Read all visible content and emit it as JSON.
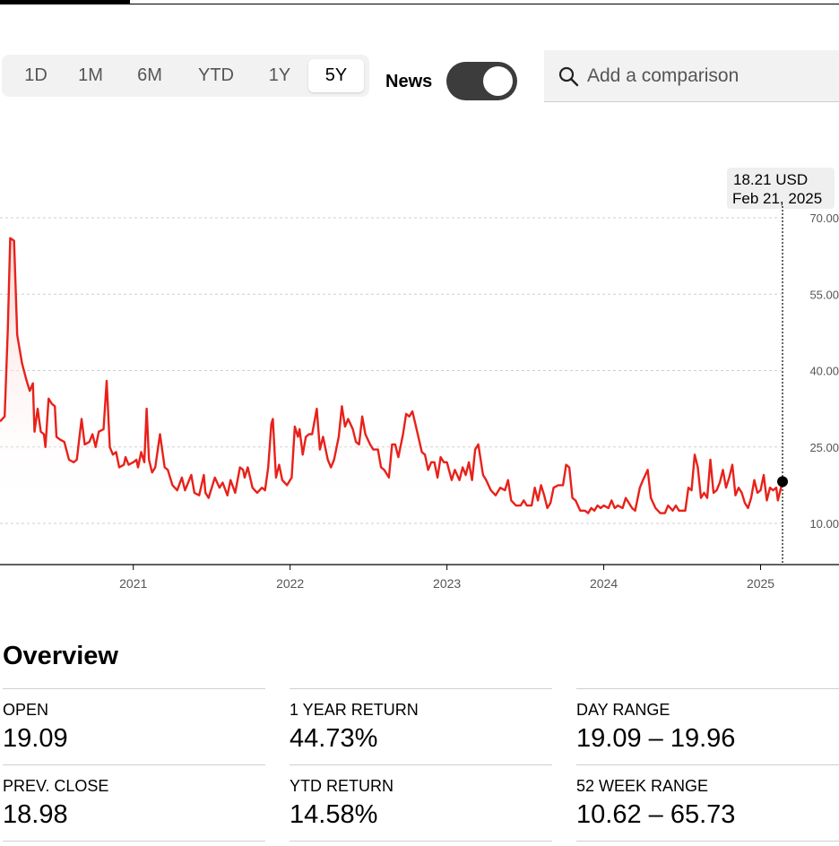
{
  "ranges": [
    {
      "label": "1D",
      "active": false
    },
    {
      "label": "1M",
      "active": false
    },
    {
      "label": "6M",
      "active": false
    },
    {
      "label": "YTD",
      "active": false
    },
    {
      "label": "1Y",
      "active": false
    },
    {
      "label": "5Y",
      "active": true
    }
  ],
  "news": {
    "label": "News",
    "on": true
  },
  "search": {
    "placeholder": "Add a comparison",
    "icon": "search-icon"
  },
  "tooltip": {
    "value": "18.21 USD",
    "date": "Feb 21, 2025"
  },
  "colors": {
    "line": "#e8211a",
    "fill_top": "#fbd2ce",
    "toggle": "#3c3c3c"
  },
  "chart_data": {
    "type": "area",
    "y_ticks": [
      "70.00",
      "55.00",
      "40.00",
      "25.00",
      "10.00"
    ],
    "ylim": [
      0,
      70
    ],
    "x_ticks": [
      "2021",
      "2022",
      "2023",
      "2024",
      "2025"
    ],
    "xlim": [
      2020.15,
      2025.5
    ],
    "grid": true,
    "marker": {
      "x": 2025.14,
      "y": 18.21
    },
    "series": [
      {
        "values": [
          [
            2020.15,
            30.0
          ],
          [
            2020.18,
            31.0
          ],
          [
            2020.2,
            48.0
          ],
          [
            2020.215,
            66.0
          ],
          [
            2020.24,
            65.5
          ],
          [
            2020.26,
            47.0
          ],
          [
            2020.29,
            41.5
          ],
          [
            2020.32,
            38.0
          ],
          [
            2020.34,
            36.0
          ],
          [
            2020.36,
            37.5
          ],
          [
            2020.37,
            28.0
          ],
          [
            2020.39,
            32.5
          ],
          [
            2020.41,
            28.0
          ],
          [
            2020.43,
            27.5
          ],
          [
            2020.44,
            25.0
          ],
          [
            2020.46,
            34.5
          ],
          [
            2020.48,
            33.5
          ],
          [
            2020.5,
            33.0
          ],
          [
            2020.51,
            27.0
          ],
          [
            2020.53,
            26.5
          ],
          [
            2020.56,
            26.0
          ],
          [
            2020.59,
            22.5
          ],
          [
            2020.62,
            22.0
          ],
          [
            2020.64,
            22.5
          ],
          [
            2020.67,
            30.5
          ],
          [
            2020.69,
            25.5
          ],
          [
            2020.72,
            26.0
          ],
          [
            2020.74,
            27.5
          ],
          [
            2020.76,
            25.0
          ],
          [
            2020.78,
            28.0
          ],
          [
            2020.81,
            28.5
          ],
          [
            2020.83,
            38.0
          ],
          [
            2020.85,
            25.0
          ],
          [
            2020.87,
            23.5
          ],
          [
            2020.89,
            24.0
          ],
          [
            2020.91,
            21.0
          ],
          [
            2020.94,
            21.5
          ],
          [
            2020.95,
            23.0
          ],
          [
            2020.97,
            21.5
          ],
          [
            2021.0,
            22.0
          ],
          [
            2021.02,
            22.5
          ],
          [
            2021.03,
            21.0
          ],
          [
            2021.05,
            24.0
          ],
          [
            2021.07,
            22.0
          ],
          [
            2021.085,
            32.5
          ],
          [
            2021.1,
            22.5
          ],
          [
            2021.12,
            20.0
          ],
          [
            2021.14,
            21.0
          ],
          [
            2021.17,
            27.5
          ],
          [
            2021.2,
            21.0
          ],
          [
            2021.22,
            20.5
          ],
          [
            2021.25,
            17.5
          ],
          [
            2021.28,
            16.5
          ],
          [
            2021.31,
            19.0
          ],
          [
            2021.33,
            16.5
          ],
          [
            2021.37,
            19.5
          ],
          [
            2021.39,
            16.0
          ],
          [
            2021.42,
            15.5
          ],
          [
            2021.45,
            19.5
          ],
          [
            2021.46,
            16.0
          ],
          [
            2021.48,
            15.0
          ],
          [
            2021.52,
            19.0
          ],
          [
            2021.55,
            17.0
          ],
          [
            2021.57,
            18.0
          ],
          [
            2021.6,
            15.5
          ],
          [
            2021.62,
            18.5
          ],
          [
            2021.65,
            16.0
          ],
          [
            2021.68,
            21.0
          ],
          [
            2021.7,
            20.5
          ],
          [
            2021.71,
            19.0
          ],
          [
            2021.73,
            21.0
          ],
          [
            2021.76,
            17.0
          ],
          [
            2021.79,
            16.0
          ],
          [
            2021.82,
            17.0
          ],
          [
            2021.84,
            16.5
          ],
          [
            2021.86,
            21.0
          ],
          [
            2021.88,
            29.5
          ],
          [
            2021.89,
            30.5
          ],
          [
            2021.91,
            19.0
          ],
          [
            2021.93,
            21.5
          ],
          [
            2021.95,
            18.5
          ],
          [
            2021.98,
            17.5
          ],
          [
            2022.01,
            19.0
          ],
          [
            2022.03,
            29.0
          ],
          [
            2022.05,
            27.0
          ],
          [
            2022.06,
            28.5
          ],
          [
            2022.08,
            23.5
          ],
          [
            2022.1,
            27.0
          ],
          [
            2022.12,
            27.5
          ],
          [
            2022.14,
            27.5
          ],
          [
            2022.17,
            32.5
          ],
          [
            2022.19,
            24.5
          ],
          [
            2022.21,
            27.0
          ],
          [
            2022.24,
            22.5
          ],
          [
            2022.26,
            21.0
          ],
          [
            2022.28,
            22.5
          ],
          [
            2022.31,
            27.0
          ],
          [
            2022.33,
            33.0
          ],
          [
            2022.35,
            29.0
          ],
          [
            2022.37,
            30.5
          ],
          [
            2022.4,
            28.5
          ],
          [
            2022.42,
            26.0
          ],
          [
            2022.44,
            25.5
          ],
          [
            2022.46,
            31.0
          ],
          [
            2022.48,
            27.5
          ],
          [
            2022.51,
            25.5
          ],
          [
            2022.53,
            24.5
          ],
          [
            2022.56,
            24.5
          ],
          [
            2022.58,
            21.0
          ],
          [
            2022.6,
            20.5
          ],
          [
            2022.63,
            19.0
          ],
          [
            2022.65,
            25.5
          ],
          [
            2022.67,
            25.5
          ],
          [
            2022.69,
            23.0
          ],
          [
            2022.72,
            27.5
          ],
          [
            2022.74,
            31.5
          ],
          [
            2022.76,
            31.0
          ],
          [
            2022.78,
            32.0
          ],
          [
            2022.81,
            28.0
          ],
          [
            2022.84,
            24.0
          ],
          [
            2022.86,
            23.5
          ],
          [
            2022.88,
            20.5
          ],
          [
            2022.9,
            22.0
          ],
          [
            2022.92,
            22.0
          ],
          [
            2022.94,
            19.0
          ],
          [
            2022.96,
            23.0
          ],
          [
            2022.98,
            22.0
          ],
          [
            2023.0,
            22.0
          ],
          [
            2023.03,
            18.5
          ],
          [
            2023.05,
            20.5
          ],
          [
            2023.08,
            18.5
          ],
          [
            2023.1,
            21.0
          ],
          [
            2023.12,
            19.5
          ],
          [
            2023.14,
            22.0
          ],
          [
            2023.16,
            18.5
          ],
          [
            2023.18,
            24.5
          ],
          [
            2023.2,
            25.5
          ],
          [
            2023.23,
            19.5
          ],
          [
            2023.25,
            18.5
          ],
          [
            2023.28,
            16.5
          ],
          [
            2023.31,
            15.5
          ],
          [
            2023.34,
            17.0
          ],
          [
            2023.37,
            16.5
          ],
          [
            2023.39,
            18.5
          ],
          [
            2023.41,
            14.5
          ],
          [
            2023.44,
            13.5
          ],
          [
            2023.47,
            13.5
          ],
          [
            2023.49,
            14.5
          ],
          [
            2023.51,
            13.5
          ],
          [
            2023.54,
            13.5
          ],
          [
            2023.56,
            17.0
          ],
          [
            2023.58,
            14.5
          ],
          [
            2023.6,
            17.5
          ],
          [
            2023.62,
            15.5
          ],
          [
            2023.64,
            13.0
          ],
          [
            2023.66,
            14.0
          ],
          [
            2023.68,
            17.0
          ],
          [
            2023.71,
            17.5
          ],
          [
            2023.74,
            17.5
          ],
          [
            2023.76,
            21.5
          ],
          [
            2023.78,
            21.0
          ],
          [
            2023.8,
            15.0
          ],
          [
            2023.82,
            14.5
          ],
          [
            2023.85,
            12.5
          ],
          [
            2023.88,
            12.5
          ],
          [
            2023.9,
            12.0
          ],
          [
            2023.92,
            13.0
          ],
          [
            2023.94,
            12.5
          ],
          [
            2023.96,
            13.5
          ],
          [
            2023.98,
            13.0
          ],
          [
            2024.0,
            13.5
          ],
          [
            2024.03,
            13.0
          ],
          [
            2024.05,
            14.5
          ],
          [
            2024.07,
            13.0
          ],
          [
            2024.09,
            13.5
          ],
          [
            2024.12,
            13.0
          ],
          [
            2024.14,
            15.0
          ],
          [
            2024.16,
            14.0
          ],
          [
            2024.18,
            13.0
          ],
          [
            2024.2,
            12.5
          ],
          [
            2024.23,
            17.0
          ],
          [
            2024.25,
            18.5
          ],
          [
            2024.28,
            20.5
          ],
          [
            2024.3,
            15.0
          ],
          [
            2024.33,
            13.0
          ],
          [
            2024.36,
            12.0
          ],
          [
            2024.39,
            12.0
          ],
          [
            2024.41,
            13.5
          ],
          [
            2024.44,
            12.5
          ],
          [
            2024.46,
            13.5
          ],
          [
            2024.48,
            12.5
          ],
          [
            2024.5,
            12.5
          ],
          [
            2024.52,
            12.5
          ],
          [
            2024.54,
            17.0
          ],
          [
            2024.56,
            16.5
          ],
          [
            2024.58,
            23.5
          ],
          [
            2024.6,
            21.0
          ],
          [
            2024.62,
            15.0
          ],
          [
            2024.64,
            16.0
          ],
          [
            2024.66,
            15.0
          ],
          [
            2024.68,
            22.5
          ],
          [
            2024.7,
            16.0
          ],
          [
            2024.72,
            16.5
          ],
          [
            2024.74,
            18.0
          ],
          [
            2024.76,
            20.5
          ],
          [
            2024.78,
            17.0
          ],
          [
            2024.8,
            19.0
          ],
          [
            2024.82,
            21.5
          ],
          [
            2024.84,
            15.5
          ],
          [
            2024.86,
            17.0
          ],
          [
            2024.88,
            16.0
          ],
          [
            2024.9,
            14.0
          ],
          [
            2024.92,
            13.0
          ],
          [
            2024.94,
            15.0
          ],
          [
            2024.96,
            18.5
          ],
          [
            2024.98,
            16.0
          ],
          [
            2025.0,
            16.5
          ],
          [
            2025.02,
            19.5
          ],
          [
            2025.04,
            14.5
          ],
          [
            2025.06,
            17.0
          ],
          [
            2025.08,
            16.5
          ],
          [
            2025.1,
            17.0
          ],
          [
            2025.11,
            14.5
          ],
          [
            2025.14,
            18.21
          ]
        ]
      }
    ]
  },
  "overview": {
    "title": "Overview",
    "stats": [
      {
        "label": "OPEN",
        "value": "19.09"
      },
      {
        "label": "1 YEAR RETURN",
        "value": "44.73%"
      },
      {
        "label": "DAY RANGE",
        "value": "19.09 – 19.96"
      },
      {
        "label": "PREV. CLOSE",
        "value": "18.98"
      },
      {
        "label": "YTD RETURN",
        "value": "14.58%"
      },
      {
        "label": "52 WEEK RANGE",
        "value": "10.62 – 65.73"
      }
    ]
  }
}
